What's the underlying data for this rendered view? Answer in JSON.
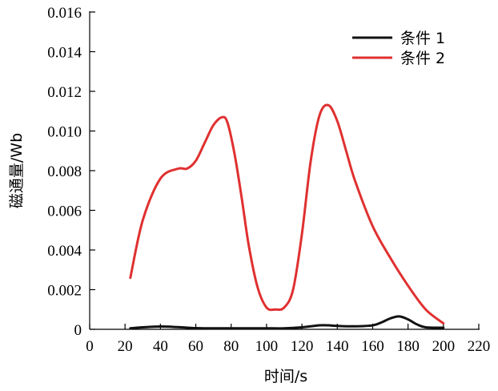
{
  "chart_data": {
    "type": "line",
    "title": "",
    "xlabel": "时间/s",
    "ylabel": "磁通量/Wb",
    "xlim": [
      0,
      220
    ],
    "ylim": [
      0,
      0.016
    ],
    "x_ticks": [
      0,
      20,
      40,
      60,
      80,
      100,
      120,
      140,
      160,
      180,
      200,
      220
    ],
    "x_tick_labels": [
      "0",
      "20",
      "40",
      "60",
      "80",
      "100",
      "120",
      "140",
      "160",
      "180",
      "200",
      "220"
    ],
    "y_ticks": [
      0,
      0.002,
      0.004,
      0.006,
      0.008,
      0.01,
      0.012,
      0.014,
      0.016
    ],
    "y_tick_labels": [
      "0",
      "0.002",
      "0.004",
      "0.006",
      "0.008",
      "0.010",
      "0.012",
      "0.014",
      "0.016"
    ],
    "grid": false,
    "legend_position": "top-right",
    "series": [
      {
        "name": "条件 1",
        "color": "#111111",
        "x": [
          23,
          30,
          40,
          50,
          60,
          70,
          80,
          90,
          100,
          110,
          120,
          130,
          135,
          140,
          150,
          160,
          165,
          170,
          175,
          180,
          185,
          190,
          200
        ],
        "y": [
          5e-05,
          0.0001,
          0.00014,
          0.00011,
          6e-05,
          5e-05,
          5e-05,
          5e-05,
          5e-05,
          5e-05,
          0.0001,
          0.0002,
          0.0002,
          0.00017,
          0.00015,
          0.0002,
          0.00035,
          0.00055,
          0.00065,
          0.0005,
          0.00025,
          0.0001,
          8e-05
        ]
      },
      {
        "name": "条件 2",
        "color": "#e03030",
        "x": [
          23,
          30,
          40,
          50,
          55,
          60,
          65,
          70,
          75,
          78,
          82,
          86,
          90,
          95,
          100,
          105,
          110,
          115,
          120,
          125,
          130,
          135,
          140,
          145,
          150,
          160,
          170,
          180,
          190,
          200
        ],
        "y": [
          0.0026,
          0.0055,
          0.0076,
          0.0081,
          0.0081,
          0.0085,
          0.0094,
          0.0103,
          0.0107,
          0.0104,
          0.0088,
          0.0066,
          0.0042,
          0.0021,
          0.0011,
          0.001,
          0.0011,
          0.002,
          0.0048,
          0.0085,
          0.0108,
          0.0113,
          0.0105,
          0.009,
          0.0075,
          0.0052,
          0.0036,
          0.0022,
          0.001,
          0.0003
        ]
      }
    ]
  }
}
